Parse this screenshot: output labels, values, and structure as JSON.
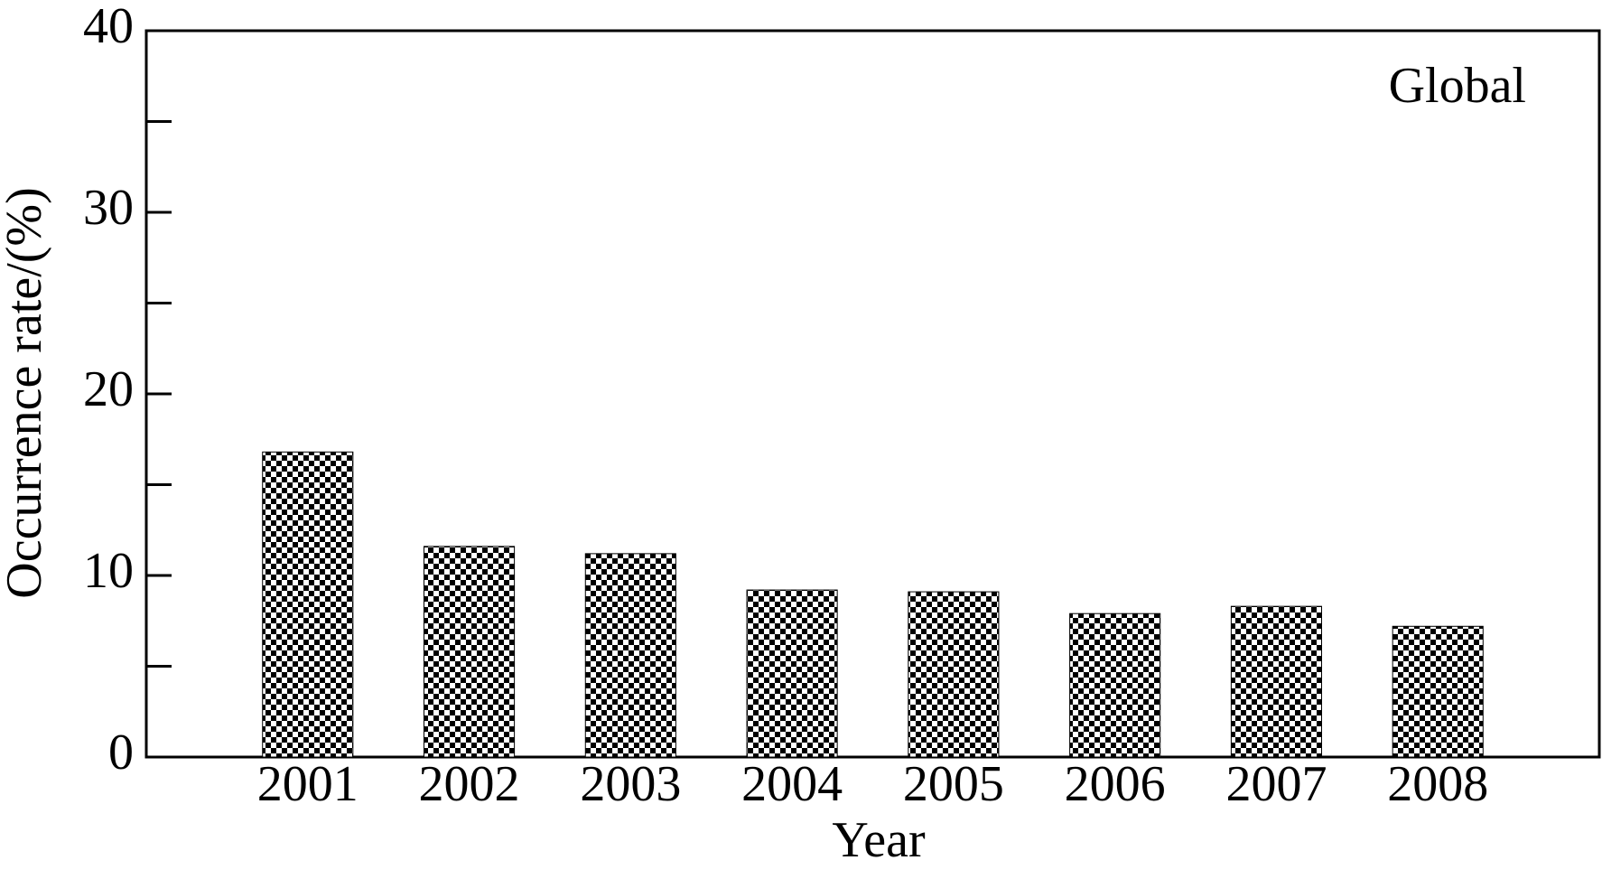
{
  "chart_data": {
    "type": "bar",
    "x_label": "Year",
    "y_label": "Occurrence rate/(%)",
    "annotation": "Global",
    "categories": [
      "2001",
      "2002",
      "2003",
      "2004",
      "2005",
      "2006",
      "2007",
      "2008"
    ],
    "values": [
      16.8,
      11.6,
      11.2,
      9.2,
      9.1,
      7.9,
      8.3,
      7.2
    ],
    "color": "#000000",
    "ylim": [
      0,
      40
    ],
    "yticks": [
      0,
      10,
      20,
      30,
      40
    ],
    "minor_yticks": [
      5,
      15,
      25,
      35
    ],
    "grid": false
  }
}
